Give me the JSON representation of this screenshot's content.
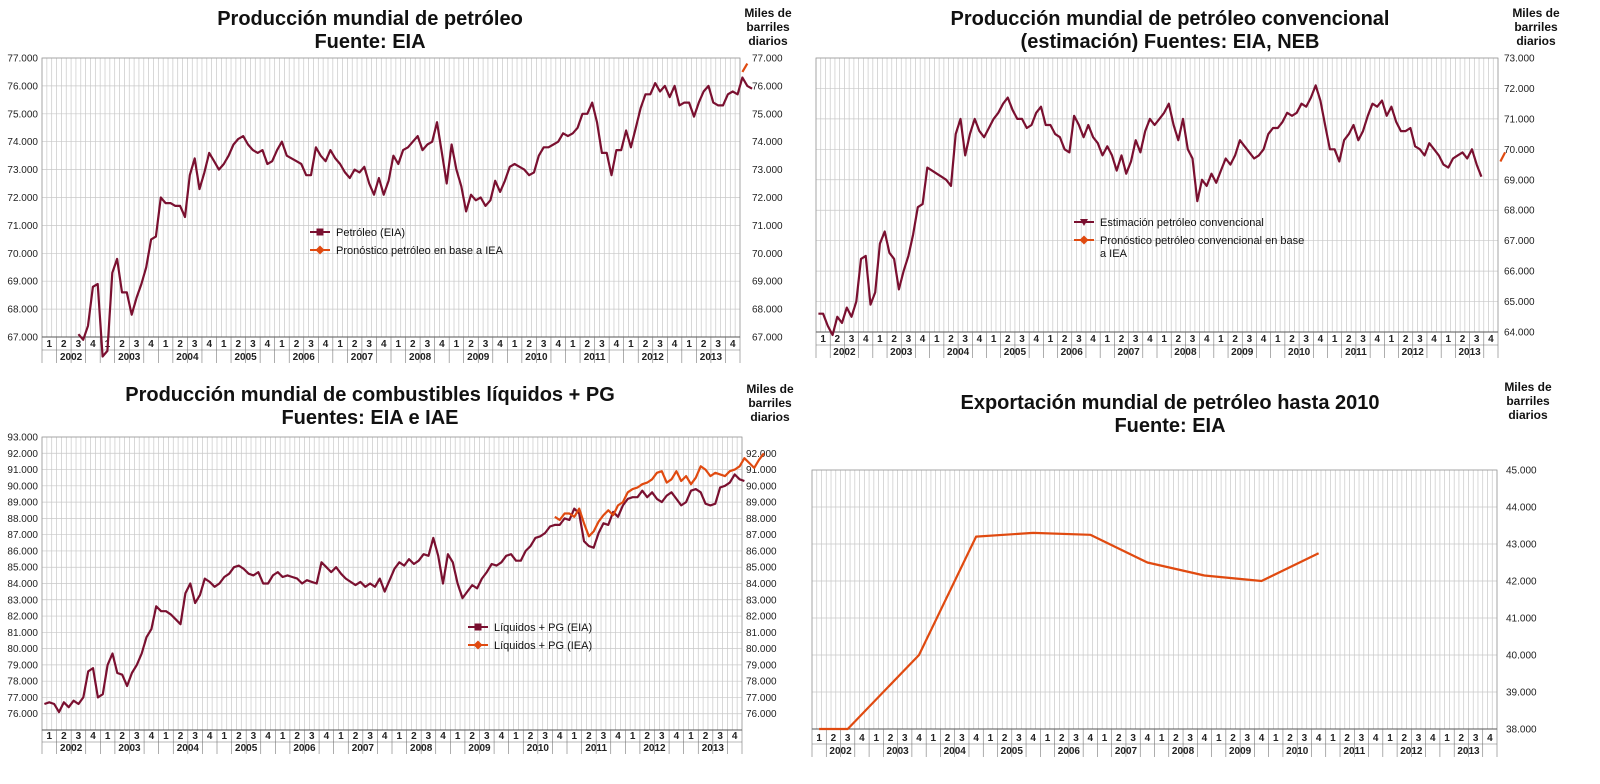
{
  "chart_data": [
    {
      "type": "line",
      "title_lines": [
        "Producción mundial de petróleo",
        "Fuente: EIA"
      ],
      "unit_label_lines": [
        "Miles de",
        "barriles",
        "diarios"
      ],
      "ylim": [
        67000,
        77000
      ],
      "ytick_labels": [
        "67.000",
        "68.000",
        "69.000",
        "70.000",
        "71.000",
        "72.000",
        "73.000",
        "74.000",
        "75.000",
        "76.000",
        "77.000"
      ],
      "quarter_labels": [
        "1",
        "2",
        "3",
        "4"
      ],
      "year_labels": [
        "2002",
        "2003",
        "2004",
        "2005",
        "2006",
        "2007",
        "2008",
        "2009",
        "2010",
        "2011",
        "2012",
        "2013"
      ],
      "x_note": "monthly data, January 2002 to December 2013 (48 quarters)",
      "series": [
        {
          "name": "Petróleo (EIA)",
          "color": "#7a1030",
          "marker": "square",
          "start_month": 7,
          "values": [
            67100,
            66900,
            67400,
            68800,
            68900,
            66300,
            66500,
            69300,
            69800,
            68600,
            68600,
            67800,
            68400,
            68900,
            69500,
            70500,
            70600,
            72000,
            71800,
            71800,
            71700,
            71700,
            71300,
            72800,
            73400,
            72300,
            72900,
            73600,
            73300,
            73000,
            73200,
            73500,
            73900,
            74100,
            74200,
            73900,
            73700,
            73600,
            73700,
            73200,
            73300,
            73700,
            74000,
            73500,
            73400,
            73300,
            73200,
            72800,
            72800,
            73800,
            73500,
            73300,
            73700,
            73400,
            73200,
            72900,
            72700,
            73000,
            72900,
            73100,
            72500,
            72100,
            72700,
            72100,
            72600,
            73500,
            73200,
            73700,
            73800,
            74000,
            74200,
            73700,
            73900,
            74000,
            74700,
            73600,
            72500,
            73900,
            73000,
            72400,
            71500,
            72100,
            71900,
            72000,
            71700,
            71900,
            72600,
            72200,
            72600,
            73100,
            73200,
            73100,
            73000,
            72800,
            72900,
            73500,
            73800,
            73800,
            73900,
            74000,
            74300,
            74200,
            74300,
            74500,
            75000,
            75000,
            75400,
            74700,
            73600,
            73600,
            72800,
            73700,
            73700,
            74400,
            73800,
            74500,
            75200,
            75700,
            75700,
            76100,
            75800,
            76000,
            75600,
            76000,
            75300,
            75400,
            75400,
            74900,
            75400,
            75800,
            76000,
            75400,
            75300,
            75300,
            75700,
            75800,
            75700,
            76300,
            76000,
            75900
          ]
        },
        {
          "name": "Pronóstico petróleo en base a IEA",
          "color": "#e04a10",
          "marker": "diamond",
          "start_month": 144,
          "values": [
            76500,
            76800
          ]
        }
      ],
      "legend_position": "center"
    },
    {
      "type": "line",
      "title_lines": [
        "Producción mundial de petróleo convencional",
        "(estimación) Fuentes: EIA, NEB"
      ],
      "unit_label_lines": [
        "Miles de",
        "barriles",
        "diarios"
      ],
      "ylim": [
        64000,
        73000
      ],
      "ytick_labels": [
        "64.000",
        "65.000",
        "66.000",
        "67.000",
        "68.000",
        "69.000",
        "70.000",
        "71.000",
        "72.000",
        "73.000"
      ],
      "quarter_labels": [
        "1",
        "2",
        "3",
        "4"
      ],
      "year_labels": [
        "2002",
        "2003",
        "2004",
        "2005",
        "2006",
        "2007",
        "2008",
        "2009",
        "2010",
        "2011",
        "2012",
        "2013"
      ],
      "x_note": "monthly data, January 2002 to December 2013 (48 quarters)",
      "series": [
        {
          "name": "Estimación petróleo convencional",
          "color": "#7a1030",
          "marker": "triangle-down",
          "start_month": 0,
          "values": [
            64600,
            64600,
            64200,
            63900,
            64500,
            64300,
            64800,
            64500,
            65000,
            66400,
            66500,
            64900,
            65300,
            66900,
            67300,
            66600,
            66400,
            65400,
            66000,
            66500,
            67200,
            68100,
            68200,
            69400,
            69300,
            69200,
            69100,
            69000,
            68800,
            70500,
            71000,
            69800,
            70500,
            71000,
            70600,
            70400,
            70700,
            71000,
            71200,
            71500,
            71700,
            71300,
            71000,
            71000,
            70700,
            70800,
            71200,
            71400,
            70800,
            70800,
            70500,
            70400,
            70000,
            69900,
            71100,
            70800,
            70400,
            70800,
            70400,
            70200,
            69800,
            70100,
            69800,
            69300,
            69800,
            69200,
            69600,
            70300,
            69900,
            70600,
            71000,
            70800,
            71000,
            71200,
            71500,
            70800,
            70300,
            71000,
            70000,
            69700,
            68300,
            69000,
            68800,
            69200,
            68900,
            69300,
            69700,
            69500,
            69800,
            70300,
            70100,
            69900,
            69700,
            69800,
            70000,
            70500,
            70700,
            70700,
            70900,
            71200,
            71100,
            71200,
            71500,
            71400,
            71700,
            72100,
            71600,
            70800,
            70000,
            70000,
            69600,
            70300,
            70500,
            70800,
            70300,
            70600,
            71100,
            71500,
            71400,
            71600,
            71100,
            71400,
            70900,
            70600,
            70600,
            70700,
            70100,
            70000,
            69800,
            70200,
            70000,
            69800,
            69500,
            69400,
            69700,
            69800,
            69900,
            69700,
            70000,
            69500,
            69100
          ]
        },
        {
          "name": "Pronóstico petróleo convencional en base a IEA",
          "color": "#e04a10",
          "marker": "diamond",
          "start_month": 144,
          "values": [
            69600,
            69900
          ]
        }
      ],
      "legend_position": "center"
    },
    {
      "type": "line",
      "title_lines": [
        "Producción mundial de combustibles líquidos + PG",
        "Fuentes: EIA e IAE"
      ],
      "unit_label_lines": [
        "Miles de",
        "barriles",
        "diarios"
      ],
      "ylim": [
        75000,
        93000
      ],
      "left_tick_labels": [
        "93.000",
        "92.000",
        "91.000",
        "90.000",
        "89.000",
        "88.000",
        "87.000",
        "86.000",
        "85.000",
        "84.000",
        "83.000",
        "82.000",
        "81.000",
        "80.000",
        "79.000",
        "78.000",
        "77.000",
        "76.000"
      ],
      "right_tick_labels": [
        "92.000",
        "91.000",
        "90.000",
        "89.000",
        "88.000",
        "87.000",
        "86.000",
        "85.000",
        "84.000",
        "83.000",
        "82.000",
        "81.000",
        "80.000",
        "79.000",
        "78.000",
        "77.000",
        "76.000"
      ],
      "quarter_labels": [
        "1",
        "2",
        "3",
        "4"
      ],
      "year_labels": [
        "2002",
        "2003",
        "2004",
        "2005",
        "2006",
        "2007",
        "2008",
        "2009",
        "2010",
        "2011",
        "2012",
        "2013"
      ],
      "x_note": "monthly data, January 2002 to December 2013 (48 quarters)",
      "series": [
        {
          "name": "Líquidos + PG (EIA)",
          "color": "#7a1030",
          "marker": "square",
          "start_month": 0,
          "values": [
            76600,
            76700,
            76600,
            76100,
            76700,
            76400,
            76800,
            76600,
            77000,
            78600,
            78800,
            77000,
            77200,
            79000,
            79700,
            78500,
            78400,
            77700,
            78500,
            79000,
            79700,
            80700,
            81200,
            82600,
            82300,
            82300,
            82100,
            81800,
            81500,
            83400,
            84000,
            82800,
            83300,
            84300,
            84100,
            83800,
            84000,
            84400,
            84600,
            85000,
            85100,
            84900,
            84600,
            84500,
            84700,
            84000,
            84000,
            84500,
            84700,
            84400,
            84500,
            84400,
            84300,
            84000,
            84200,
            84100,
            84000,
            85300,
            85000,
            84700,
            85000,
            84600,
            84300,
            84100,
            83900,
            84100,
            83800,
            84000,
            83800,
            84300,
            83500,
            84200,
            84900,
            85300,
            85100,
            85500,
            85200,
            85400,
            85800,
            85700,
            86800,
            85700,
            84000,
            85800,
            85300,
            84000,
            83100,
            83500,
            83900,
            83700,
            84300,
            84700,
            85200,
            85100,
            85300,
            85700,
            85800,
            85400,
            85400,
            86000,
            86300,
            86800,
            86900,
            87100,
            87500,
            87600,
            87600,
            88000,
            87900,
            88600,
            88300,
            86600,
            86300,
            86200,
            87100,
            87700,
            87600,
            88400,
            88100,
            88800,
            89200,
            89300,
            89300,
            89700,
            89300,
            89600,
            89200,
            89000,
            89400,
            89600,
            89200,
            88800,
            89000,
            89700,
            89800,
            89600,
            88900,
            88800,
            88900,
            89900,
            90000,
            90200,
            90700,
            90400,
            90300
          ]
        },
        {
          "name": "Líquidos + PG (IEA)",
          "color": "#e04a10",
          "marker": "diamond",
          "start_month": 105,
          "values": [
            88100,
            87900,
            88300,
            88300,
            88100,
            88600,
            87700,
            86900,
            87200,
            87800,
            88200,
            88500,
            88200,
            88800,
            89000,
            89600,
            89800,
            89900,
            90100,
            90200,
            90400,
            90800,
            90900,
            90200,
            90400,
            90900,
            90300,
            90600,
            90100,
            90500,
            91200,
            91000,
            90600,
            90800,
            90700,
            90600,
            90900,
            91000,
            91200,
            91700,
            91400,
            91100,
            91600,
            92000
          ]
        }
      ],
      "legend_position": "center"
    },
    {
      "type": "line",
      "title_lines": [
        "Exportación mundial de petróleo hasta 2010",
        "Fuente: EIA"
      ],
      "unit_label_lines": [
        "Miles de",
        "barriles",
        "diarios"
      ],
      "ylim": [
        38000,
        45000
      ],
      "ytick_labels": [
        "38.000",
        "39.000",
        "40.000",
        "41.000",
        "42.000",
        "43.000",
        "44.000",
        "45.000"
      ],
      "quarter_labels": [
        "1",
        "2",
        "3",
        "4"
      ],
      "year_labels": [
        "2002",
        "2003",
        "2004",
        "2005",
        "2006",
        "2007",
        "2008",
        "2009",
        "2010",
        "2011",
        "2012",
        "2013"
      ],
      "x_note": "quarterly x positions, 2002 Q1 to 2013 Q4",
      "series": [
        {
          "name": "Exportación mundial de petróleo",
          "color": "#e04a10",
          "quarter_index": [
            0,
            2,
            7,
            11,
            15,
            19,
            23,
            27,
            31,
            35
          ],
          "values": [
            38000,
            38000,
            40000,
            43200,
            43300,
            43250,
            42500,
            42150,
            42000,
            42750
          ]
        }
      ],
      "legend_position": "none"
    }
  ]
}
